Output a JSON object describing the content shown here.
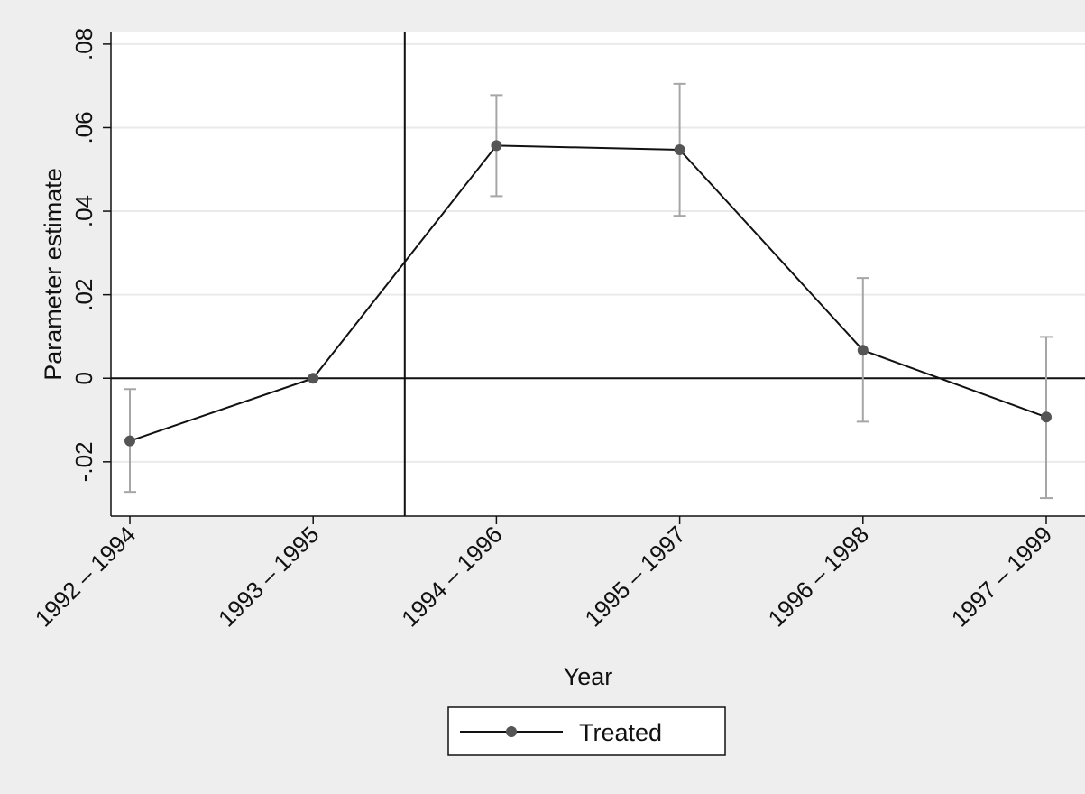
{
  "chart_data": {
    "type": "line",
    "title": "",
    "xlabel": "Year",
    "ylabel": "Parameter estimate",
    "categories": [
      "1992 – 1994",
      "1993 – 1995",
      "1994 – 1996",
      "1995 – 1997",
      "1996 – 1998",
      "1997 – 1999"
    ],
    "ylim": [
      -0.033,
      0.083
    ],
    "yticks": [
      -0.02,
      0,
      0.02,
      0.04,
      0.06,
      0.08
    ],
    "ytick_labels": [
      "-.02",
      "0",
      ".02",
      ".04",
      ".06",
      ".08"
    ],
    "grid": true,
    "reference_lines": {
      "y": 0,
      "x_between": [
        1,
        2
      ]
    },
    "series": [
      {
        "name": "Treated",
        "values": [
          -0.015,
          0.0,
          0.0557,
          0.0547,
          0.0067,
          -0.0093
        ],
        "ci_low": [
          -0.0272,
          0.0,
          0.0436,
          0.0389,
          -0.0104,
          -0.0287
        ],
        "ci_high": [
          -0.0026,
          0.0,
          0.0678,
          0.0705,
          0.024,
          0.0099
        ],
        "color": "#111111",
        "marker_color": "#555555",
        "errorbar_color": "#a6a6a6"
      }
    ],
    "legend": {
      "position": "bottom-center"
    }
  },
  "colors": {
    "background": "#eeeeee",
    "plot_background": "#ffffff",
    "grid": "#eaeaea",
    "axis": "#111111"
  }
}
